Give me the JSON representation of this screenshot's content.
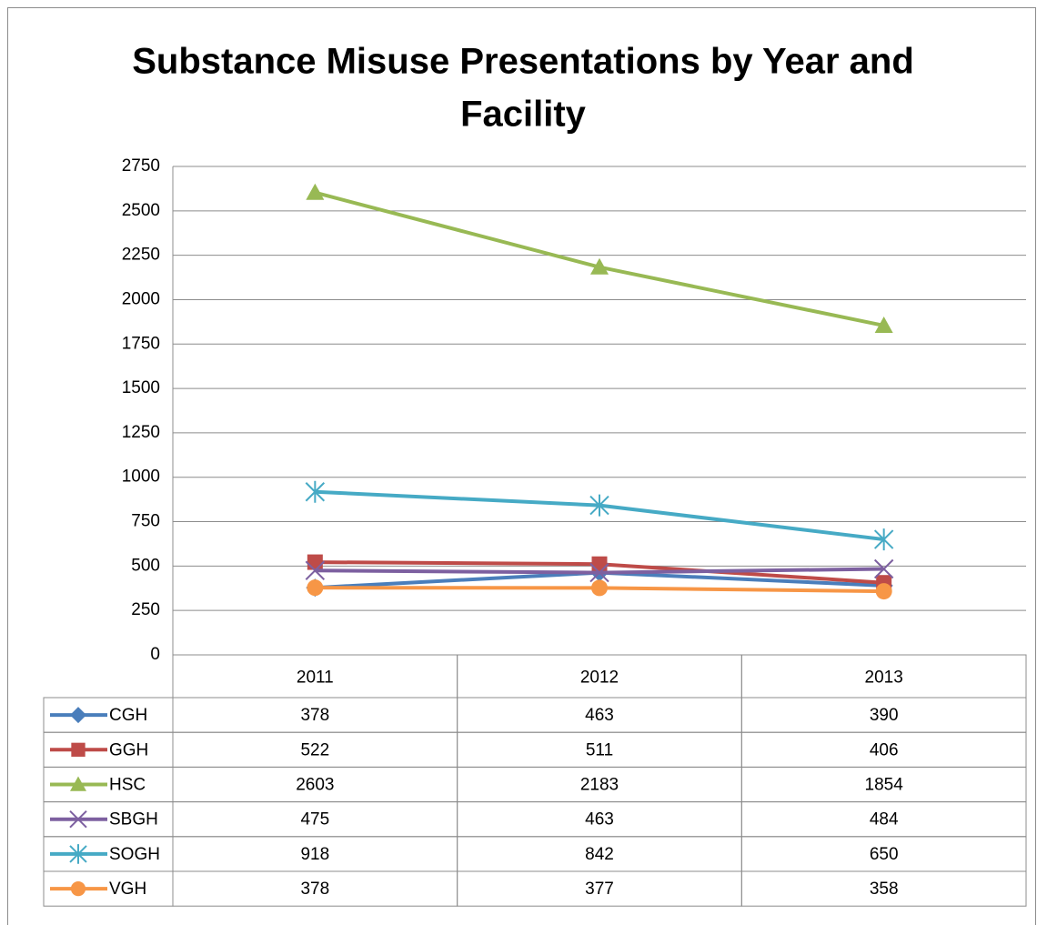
{
  "chart_data": {
    "type": "line",
    "title": [
      "Substance Misuse Presentations by Year and",
      "Facility"
    ],
    "categories": [
      "2011",
      "2012",
      "2013"
    ],
    "series": [
      {
        "name": "CGH",
        "color": "#4a7ebb",
        "marker": "diamond",
        "values": [
          378,
          463,
          390
        ]
      },
      {
        "name": "GGH",
        "color": "#be4b48",
        "marker": "square",
        "values": [
          522,
          511,
          406
        ]
      },
      {
        "name": "HSC",
        "color": "#98b954",
        "marker": "triangle",
        "values": [
          2603,
          2183,
          1854
        ]
      },
      {
        "name": "SBGH",
        "color": "#7d60a0",
        "marker": "x",
        "values": [
          475,
          463,
          484
        ]
      },
      {
        "name": "SOGH",
        "color": "#46aac5",
        "marker": "star",
        "values": [
          918,
          842,
          650
        ]
      },
      {
        "name": "VGH",
        "color": "#f79646",
        "marker": "circle",
        "values": [
          378,
          377,
          358
        ]
      }
    ],
    "ylim": [
      0,
      2750
    ],
    "yticks": [
      0,
      250,
      500,
      750,
      1000,
      1250,
      1500,
      1750,
      2000,
      2250,
      2500,
      2750
    ],
    "grid": true,
    "data_table": true
  }
}
